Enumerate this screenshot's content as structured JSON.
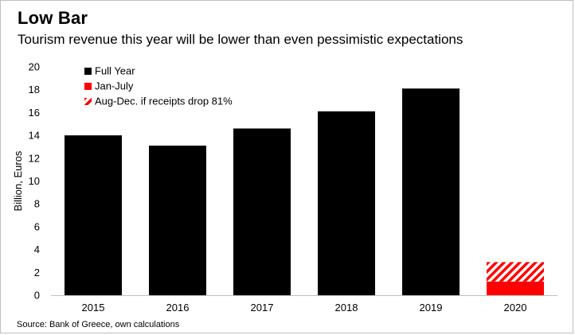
{
  "title": "Low Bar",
  "subtitle": "Tourism revenue this year will be lower than even pessimistic expectations",
  "source": "Source: Bank of Greece, own calculations",
  "colors": {
    "full_year": "#000000",
    "jan_july": "#ff0000",
    "aug_dec": "#ff0000"
  },
  "chart_data": {
    "type": "bar",
    "title": "Low Bar",
    "subtitle": "Tourism revenue this year will be lower than even pessimistic expectations",
    "xlabel": "",
    "ylabel": "Billion, Euros",
    "ylim": [
      0,
      20
    ],
    "yticks": [
      0,
      2,
      4,
      6,
      8,
      10,
      12,
      14,
      16,
      18,
      20
    ],
    "grid": false,
    "legend_position": "top-left",
    "stacked": true,
    "categories": [
      "2015",
      "2016",
      "2017",
      "2018",
      "2019",
      "2020"
    ],
    "series": [
      {
        "name": "Full Year",
        "values": [
          14.0,
          13.1,
          14.6,
          16.1,
          18.1,
          null
        ]
      },
      {
        "name": "Jan-July",
        "values": [
          null,
          null,
          null,
          null,
          null,
          1.2
        ]
      },
      {
        "name": "Aug-Dec. if receipts drop 81%",
        "values": [
          null,
          null,
          null,
          null,
          null,
          1.7
        ]
      }
    ]
  }
}
